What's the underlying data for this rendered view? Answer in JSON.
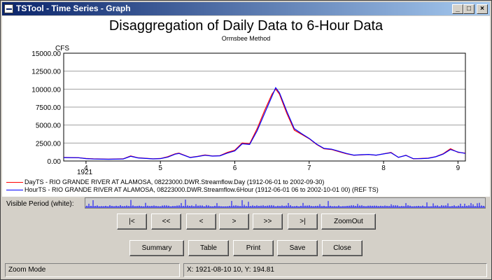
{
  "window": {
    "title": "TSTool - Time Series - Graph",
    "controls": [
      "_",
      "□",
      "×"
    ]
  },
  "graph": {
    "title": "Disaggregation of Daily Data to 6-Hour Data",
    "subtitle": "Ormsbee Method",
    "ylabel": "CFS",
    "year_label": "1921"
  },
  "chart_data": {
    "type": "line",
    "title": "Disaggregation of Daily Data to 6-Hour Data",
    "subtitle": "Ormsbee Method",
    "ylabel": "CFS",
    "xlabel": "",
    "ylim": [
      0,
      15000
    ],
    "xlim": [
      3.7,
      9.1
    ],
    "y_ticks": [
      "0.00",
      "2500.00",
      "5000.00",
      "7500.00",
      "10000.00",
      "12500.00",
      "15000.00"
    ],
    "x_ticks": [
      "4",
      "5",
      "6",
      "7",
      "8",
      "9"
    ],
    "grid": true,
    "legend_placement": "bottom",
    "series": [
      {
        "name": "DayTS - RIO GRANDE RIVER AT ALAMOSA, 08223000.DWR.Streamflow.Day (1912-06-01 to 2002-09-30)",
        "color": "#ff0000",
        "x": [
          3.7,
          3.9,
          4.0,
          4.1,
          4.3,
          4.5,
          4.6,
          4.7,
          4.9,
          5.0,
          5.1,
          5.2,
          5.25,
          5.4,
          5.5,
          5.6,
          5.7,
          5.8,
          5.9,
          6.0,
          6.1,
          6.2,
          6.3,
          6.4,
          6.5,
          6.55,
          6.6,
          6.7,
          6.8,
          6.9,
          7.0,
          7.1,
          7.2,
          7.3,
          7.4,
          7.5,
          7.6,
          7.7,
          7.8,
          7.9,
          8.0,
          8.1,
          8.2,
          8.3,
          8.4,
          8.5,
          8.6,
          8.7,
          8.8,
          8.9,
          9.0,
          9.1
        ],
        "values": [
          500,
          450,
          350,
          300,
          250,
          300,
          700,
          450,
          300,
          350,
          600,
          1000,
          1100,
          500,
          650,
          850,
          700,
          750,
          1200,
          1500,
          2500,
          2400,
          4500,
          7000,
          9300,
          10000,
          9300,
          6600,
          4300,
          3700,
          3100,
          2300,
          1700,
          1600,
          1300,
          1000,
          800,
          850,
          900,
          800,
          1000,
          1200,
          500,
          800,
          300,
          350,
          400,
          600,
          1000,
          1700,
          1200,
          1100
        ]
      },
      {
        "name": "HourTS - RIO GRANDE RIVER AT ALAMOSA, 08223000.DWR.Streamflow.6Hour (1912-06-01 06 to 2002-10-01 00) (REF TS)",
        "color": "#0000ff",
        "x": [
          3.7,
          3.9,
          4.0,
          4.1,
          4.3,
          4.5,
          4.6,
          4.7,
          4.9,
          5.0,
          5.1,
          5.2,
          5.25,
          5.4,
          5.5,
          5.6,
          5.7,
          5.8,
          5.9,
          6.0,
          6.1,
          6.2,
          6.3,
          6.4,
          6.5,
          6.55,
          6.6,
          6.7,
          6.8,
          6.9,
          7.0,
          7.1,
          7.2,
          7.3,
          7.4,
          7.5,
          7.6,
          7.7,
          7.8,
          7.9,
          8.0,
          8.1,
          8.2,
          8.3,
          8.4,
          8.5,
          8.6,
          8.7,
          8.8,
          8.9,
          9.0,
          9.1
        ],
        "values": [
          480,
          460,
          330,
          280,
          240,
          280,
          650,
          430,
          290,
          330,
          550,
          950,
          1050,
          480,
          620,
          800,
          680,
          720,
          1100,
          1400,
          2400,
          2300,
          4200,
          6600,
          9000,
          10200,
          9500,
          6900,
          4500,
          3800,
          3150,
          2350,
          1750,
          1650,
          1350,
          1050,
          820,
          880,
          920,
          820,
          980,
          1150,
          520,
          780,
          320,
          330,
          380,
          580,
          950,
          1600,
          1250,
          1050
        ]
      }
    ]
  },
  "visible_period": {
    "label": "Visible Period (white):"
  },
  "nav_buttons": {
    "first": "|<",
    "page_back": "<<",
    "back": "<",
    "forward": ">",
    "page_forward": ">>",
    "last": ">|",
    "zoom_out": "ZoomOut"
  },
  "action_buttons": {
    "summary": "Summary",
    "table": "Table",
    "print": "Print",
    "save": "Save",
    "close": "Close"
  },
  "status": {
    "mode": "Zoom Mode",
    "coords": "X:  1921-08-10 10,  Y:  194.81"
  }
}
